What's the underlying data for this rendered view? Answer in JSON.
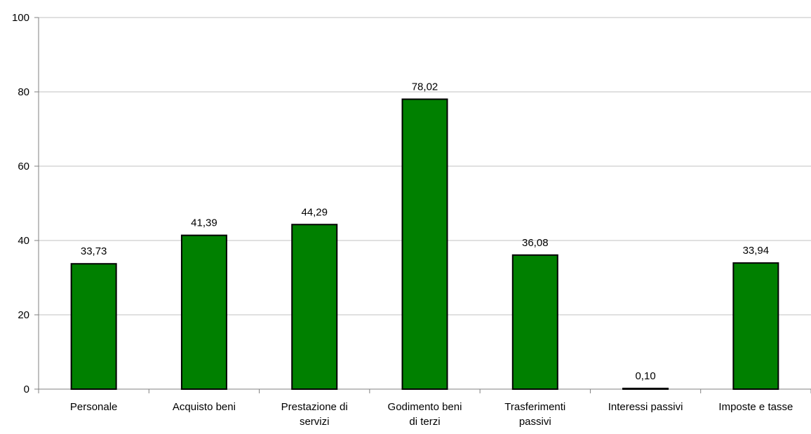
{
  "chart_data": {
    "type": "bar",
    "categories": [
      "Personale",
      "Acquisto beni",
      "Prestazione di servizi",
      "Godimento beni di terzi",
      "Trasferimenti passivi",
      "Interessi passivi",
      "Imposte e tasse"
    ],
    "category_label_lines": [
      [
        "Personale"
      ],
      [
        "Acquisto beni"
      ],
      [
        "Prestazione di",
        "servizi"
      ],
      [
        "Godimento beni",
        "di terzi"
      ],
      [
        "Trasferimenti",
        "passivi"
      ],
      [
        "Interessi passivi"
      ],
      [
        "Imposte e tasse"
      ]
    ],
    "values": [
      33.73,
      41.39,
      44.29,
      78.02,
      36.08,
      0.1,
      33.94
    ],
    "data_labels": [
      "33,73",
      "41,39",
      "44,29",
      "78,02",
      "36,08",
      "0,10",
      "33,94"
    ],
    "ylim": [
      0,
      100
    ],
    "yticks": [
      0,
      20,
      40,
      60,
      80,
      100
    ],
    "ytick_labels": [
      "0",
      "20",
      "40",
      "60",
      "80",
      "100"
    ],
    "title": "",
    "xlabel": "",
    "ylabel": "",
    "grid": true,
    "colors": {
      "bar_fill": "#008000",
      "bar_stroke": "#000000",
      "grid": "#c0c0c0",
      "axis": "#808080",
      "text": "#000000"
    }
  }
}
